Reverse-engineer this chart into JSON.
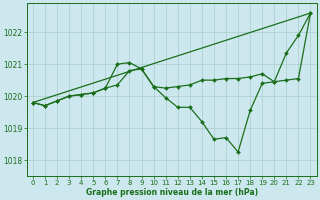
{
  "background_color": "#cce8ee",
  "grid_color": "#aacccc",
  "line_color": "#1a6e1a",
  "marker_color": "#1a6e1a",
  "xlabel": "Graphe pression niveau de la mer (hPa)",
  "xlim": [
    -0.5,
    23.5
  ],
  "ylim": [
    1017.5,
    1022.9
  ],
  "yticks": [
    1018,
    1019,
    1020,
    1021,
    1022
  ],
  "xticks": [
    0,
    1,
    2,
    3,
    4,
    5,
    6,
    7,
    8,
    9,
    10,
    11,
    12,
    13,
    14,
    15,
    16,
    17,
    18,
    19,
    20,
    21,
    22,
    23
  ],
  "series1_no_marker": {
    "x": [
      0,
      23
    ],
    "y": [
      1019.8,
      1022.6
    ]
  },
  "series2_with_marker": {
    "x": [
      0,
      1,
      2,
      3,
      4,
      5,
      6,
      7,
      8,
      9,
      10,
      11,
      12,
      13,
      14,
      15,
      16,
      17,
      18,
      19,
      20,
      21,
      22,
      23
    ],
    "y": [
      1019.8,
      1019.7,
      1019.85,
      1020.0,
      1020.05,
      1020.1,
      1020.25,
      1021.0,
      1021.05,
      1020.85,
      1020.3,
      1020.25,
      1020.3,
      1020.35,
      1020.5,
      1020.5,
      1020.55,
      1020.55,
      1020.6,
      1020.7,
      1020.45,
      1020.5,
      1020.55,
      1022.6
    ]
  },
  "series3_with_marker": {
    "x": [
      0,
      1,
      2,
      3,
      4,
      5,
      6,
      7,
      8,
      9,
      10,
      11,
      12,
      13,
      14,
      15,
      16,
      17,
      18,
      19,
      20,
      21,
      22,
      23
    ],
    "y": [
      1019.8,
      1019.7,
      1019.85,
      1020.0,
      1020.05,
      1020.1,
      1020.25,
      1020.35,
      1020.8,
      1020.85,
      1020.3,
      1019.95,
      1019.65,
      1019.65,
      1019.2,
      1018.65,
      1018.7,
      1018.25,
      1019.55,
      1020.4,
      1020.45,
      1021.35,
      1021.9,
      1022.6
    ]
  }
}
